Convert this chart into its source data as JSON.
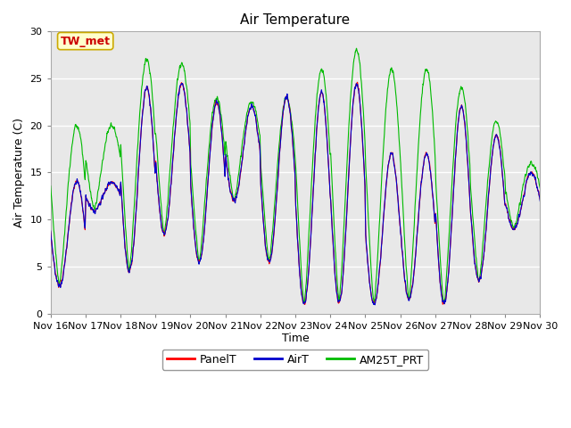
{
  "title": "Air Temperature",
  "ylabel": "Air Temperature (C)",
  "xlabel": "Time",
  "annotation": "TW_met",
  "ylim": [
    0,
    30
  ],
  "yticks": [
    0,
    5,
    10,
    15,
    20,
    25,
    30
  ],
  "xtick_labels": [
    "Nov 16",
    "Nov 17",
    "Nov 18",
    "Nov 19",
    "Nov 20",
    "Nov 21",
    "Nov 22",
    "Nov 23",
    "Nov 24",
    "Nov 25",
    "Nov 26",
    "Nov 27",
    "Nov 28",
    "Nov 29",
    "Nov 30"
  ],
  "legend_labels": [
    "PanelT",
    "AirT",
    "AM25T_PRT"
  ],
  "line_colors": [
    "#ff0000",
    "#0000cc",
    "#00bb00"
  ],
  "fig_bg_color": "#ffffff",
  "plot_bg_color": "#e8e8e8",
  "grid_color": "#ffffff",
  "annotation_bg": "#ffffcc",
  "annotation_border": "#ccaa00",
  "annotation_text_color": "#cc0000",
  "title_fontsize": 11,
  "axis_label_fontsize": 9,
  "tick_fontsize": 8,
  "legend_fontsize": 9
}
